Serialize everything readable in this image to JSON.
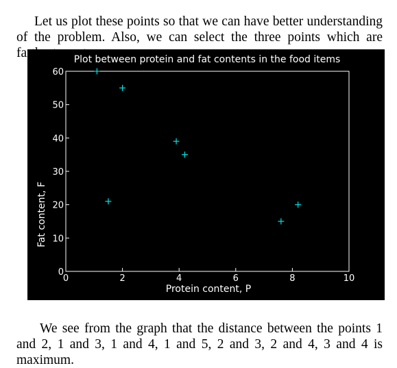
{
  "text": {
    "paragraph_1": "Let us plot these points so that we can have better understanding of the problem. Also, we can select the three points which are farthest apart.",
    "paragraph_2": "We see from the graph that the distance between the points 1 and 2, 1 and 3, 1 and 4, 1 and 5, 2 and 3, 2 and 4, 3 and 4 is maximum."
  },
  "chart_data": {
    "type": "scatter",
    "title": "Plot between protein and fat contents in the food items",
    "xlabel": "Protein content, P",
    "ylabel": "Fat content, F",
    "xlim": [
      0,
      10
    ],
    "ylim": [
      0,
      60
    ],
    "xticks": [
      0,
      2,
      4,
      6,
      8,
      10
    ],
    "yticks": [
      0,
      10,
      20,
      30,
      40,
      50,
      60
    ],
    "grid": false,
    "marker": "+",
    "colors": {
      "background": "#000000",
      "axes": "#ffffff",
      "points": "#00e5e5"
    },
    "points": [
      {
        "x": 1.1,
        "y": 60
      },
      {
        "x": 2.0,
        "y": 55
      },
      {
        "x": 1.5,
        "y": 21
      },
      {
        "x": 3.9,
        "y": 39
      },
      {
        "x": 4.2,
        "y": 35
      },
      {
        "x": 7.6,
        "y": 15
      },
      {
        "x": 8.2,
        "y": 20
      }
    ]
  }
}
